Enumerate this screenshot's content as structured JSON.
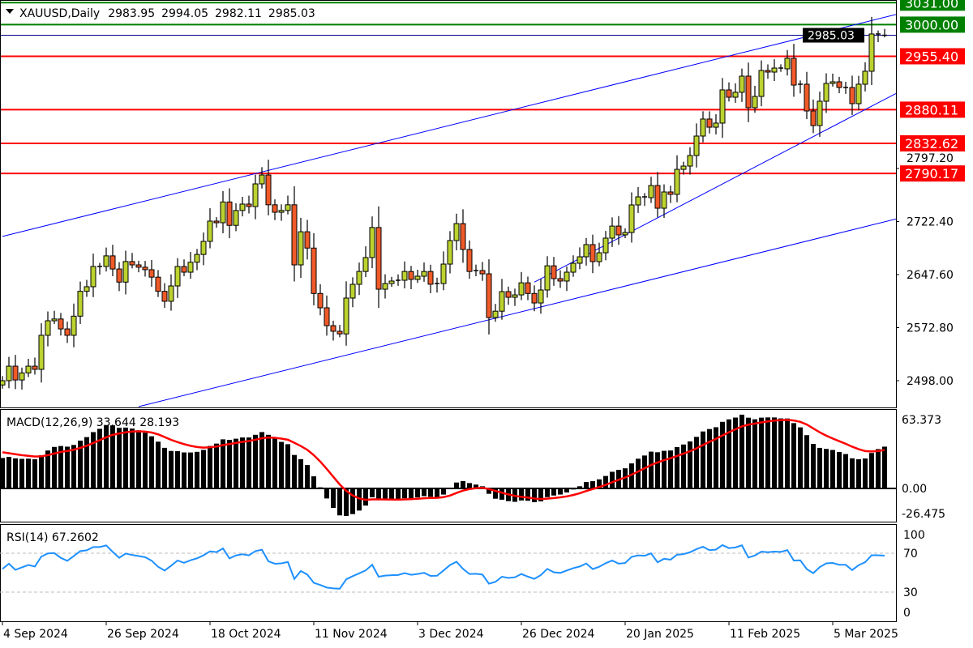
{
  "header": {
    "symbol_timeframe": "XAUUSD,Daily",
    "open": "2983.95",
    "high": "2994.05",
    "low": "2982.11",
    "close": "2985.03",
    "menu_icon": "triangle-down-icon"
  },
  "colors": {
    "bull": "#bcd22f",
    "bear": "#f05a28",
    "support_resistance": "#ff0000",
    "round_levels": "#008000",
    "trendline": "#0000ff",
    "macd_bars": "#000000",
    "macd_signal": "#ff0000",
    "rsi": "#1e90ff"
  },
  "chart_data": {
    "type": "candlestick",
    "symbol": "XAUUSD",
    "timeframe": "Daily",
    "price_axis": {
      "ticks": [
        "2498.00",
        "2572.80",
        "2647.60",
        "2722.40",
        "2797.20"
      ],
      "ylim": [
        2443,
        3035
      ]
    },
    "date_axis": {
      "labels": [
        {
          "bar": 0,
          "text": "4 Sep 2024"
        },
        {
          "bar": 16,
          "text": "26 Sep 2024"
        },
        {
          "bar": 32,
          "text": "18 Oct 2024"
        },
        {
          "bar": 48,
          "text": "11 Nov 2024"
        },
        {
          "bar": 64,
          "text": "3 Dec 2024"
        },
        {
          "bar": 80,
          "text": "26 Dec 2024"
        },
        {
          "bar": 96,
          "text": "20 Jan 2025"
        },
        {
          "bar": 112,
          "text": "11 Feb 2025"
        },
        {
          "bar": 128,
          "text": "5 Mar 2025"
        }
      ]
    },
    "closes": [
      2498,
      2518.5,
      2499,
      2509,
      2518.5,
      2514,
      2562,
      2582.5,
      2585,
      2571,
      2562,
      2589,
      2624,
      2630.5,
      2659,
      2659,
      2674,
      2655.5,
      2637,
      2666,
      2661.3,
      2658,
      2654.5,
      2644,
      2624,
      2610,
      2631.6,
      2659,
      2651,
      2665,
      2676,
      2694.4,
      2723,
      2720.7,
      2750,
      2717,
      2738,
      2747,
      2743.5,
      2775.5,
      2788,
      2746,
      2735.5,
      2738,
      2746,
      2661.3,
      2708,
      2685,
      2621,
      2600.8,
      2575.6,
      2567.7,
      2564,
      2614.5,
      2633.9,
      2652,
      2671.6,
      2714,
      2627,
      2635,
      2638.5,
      2639.6,
      2652,
      2640.8,
      2645.3,
      2652,
      2634,
      2635,
      2662.4,
      2695.6,
      2719.5,
      2683,
      2652,
      2653.3,
      2648.7,
      2587,
      2596,
      2623.6,
      2615.6,
      2619,
      2636,
      2621,
      2607.6,
      2625.9,
      2660,
      2641.9,
      2638.5,
      2651,
      2663.6,
      2672.7,
      2689.9,
      2665.9,
      2678.4,
      2699,
      2716,
      2703.6,
      2707,
      2745.8,
      2757.2,
      2756,
      2773.2,
      2741.2,
      2764.1,
      2760.7,
      2796,
      2800.6,
      2815.5,
      2842.9,
      2866.9,
      2855.4,
      2861.2,
      2908,
      2897.7,
      2904.6,
      2927.4,
      2882.9,
      2898.8,
      2935.4,
      2933.1,
      2938.8,
      2937.7,
      2952.5,
      2914.8,
      2916,
      2878.3,
      2857.7,
      2892,
      2917.1,
      2919.4,
      2911.4,
      2911.4,
      2888.6,
      2916,
      2934.3,
      2986.8,
      2986.8,
      2985.03
    ],
    "last_bar": {
      "open": 2983.95,
      "high": 2994.05,
      "low": 2982.11,
      "close": 2985.03
    },
    "horizontal_levels": [
      {
        "price": 3031.0,
        "label": "3031.00",
        "color": "#008000"
      },
      {
        "price": 3000.0,
        "label": "3000.00",
        "color": "#008000"
      },
      {
        "price": 2955.4,
        "label": "2955.40",
        "color": "#ff0000"
      },
      {
        "price": 2880.11,
        "label": "2880.11",
        "color": "#ff0000"
      },
      {
        "price": 2832.62,
        "label": "2832.62",
        "color": "#ff0000"
      },
      {
        "price": 2790.17,
        "label": "2790.17",
        "color": "#ff0000"
      }
    ],
    "current_price": {
      "price": 2985.03,
      "label": "2985.03"
    },
    "trendlines": [
      {
        "name": "channel-upper",
        "start": {
          "bar": 0,
          "price": 2701.4
        },
        "end": {
          "bar": 136,
          "price": 3010.3
        }
      },
      {
        "name": "channel-lower",
        "start": {
          "bar": 21,
          "price": 2461.5
        },
        "end": {
          "bar": 136,
          "price": 2722.0
        }
      },
      {
        "name": "support-rising",
        "start": {
          "bar": 82,
          "price": 2637.0
        },
        "end": {
          "bar": 136,
          "price": 2894.6
        }
      }
    ],
    "macd": {
      "label": "MACD(12,26,9) 33.644 28.193",
      "fast": 12,
      "slow": 26,
      "signal": 9,
      "last_main": 33.644,
      "last_signal": 28.193,
      "ylim": [
        -26.475,
        63.373
      ],
      "ticks": [
        "63.373",
        "0.00",
        "-26.475"
      ]
    },
    "rsi": {
      "label": "RSI(14) 67.2602",
      "period": 14,
      "last": 67.2602,
      "ylim": [
        0,
        100
      ],
      "levels": [
        70,
        30
      ],
      "ticks": [
        "100",
        "70",
        "30",
        "0"
      ]
    }
  }
}
